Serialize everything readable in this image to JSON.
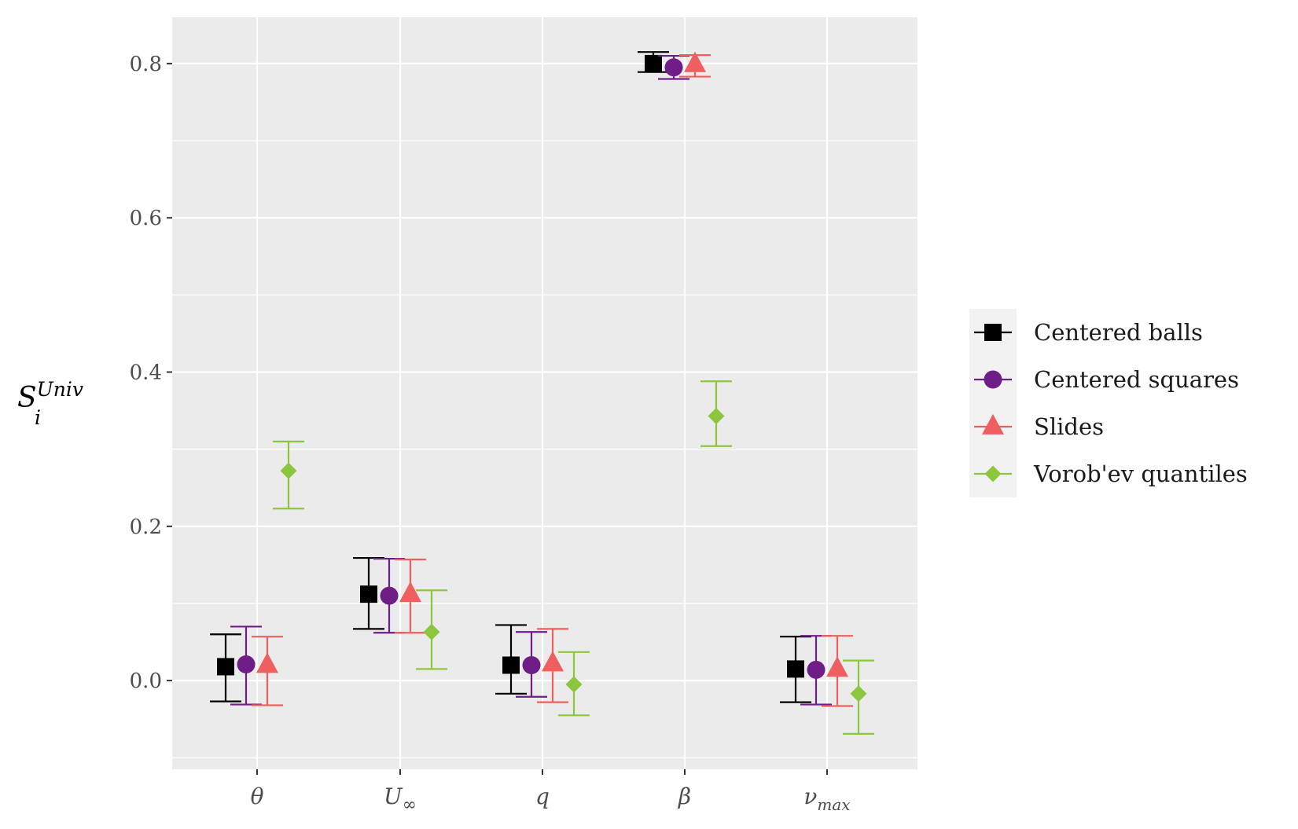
{
  "chart_data": {
    "type": "scatter",
    "title": "",
    "xlabel": "",
    "ylabel": {
      "base": "S",
      "sub": "i",
      "sup": "Univ"
    },
    "categories": [
      "θ",
      "U",
      "q",
      "β",
      "ν"
    ],
    "category_subscripts": [
      "",
      "∞",
      "",
      "",
      "max"
    ],
    "ylim": [
      -0.115,
      0.86
    ],
    "y_ticks": [
      0.0,
      0.2,
      0.4,
      0.6,
      0.8
    ],
    "y_tick_labels": [
      "0.0",
      "0.2",
      "0.4",
      "0.6",
      "0.8"
    ],
    "grid": true,
    "legend_position": "right",
    "series": [
      {
        "name": "Centered balls",
        "color": "#000000",
        "marker": "square",
        "values": [
          0.018,
          0.112,
          0.02,
          0.8,
          0.015
        ],
        "lower": [
          -0.027,
          0.067,
          -0.017,
          0.789,
          -0.028
        ],
        "upper": [
          0.06,
          0.159,
          0.072,
          0.815,
          0.057
        ]
      },
      {
        "name": "Centered squares",
        "color": "#6f1d87",
        "marker": "circle",
        "values": [
          0.021,
          0.11,
          0.02,
          0.795,
          0.014
        ],
        "lower": [
          -0.031,
          0.062,
          -0.021,
          0.78,
          -0.031
        ],
        "upper": [
          0.07,
          0.158,
          0.063,
          0.81,
          0.058
        ]
      },
      {
        "name": "Slides",
        "color": "#ef5f5f",
        "marker": "triangle",
        "values": [
          0.02,
          0.112,
          0.022,
          0.799,
          0.015
        ],
        "lower": [
          -0.032,
          0.062,
          -0.028,
          0.783,
          -0.033
        ],
        "upper": [
          0.057,
          0.157,
          0.067,
          0.811,
          0.058
        ]
      },
      {
        "name": "Vorob'ev quantiles",
        "color": "#8cc63e",
        "marker": "diamond",
        "values": [
          0.272,
          0.063,
          -0.005,
          0.343,
          -0.017
        ],
        "lower": [
          0.223,
          0.015,
          -0.045,
          0.304,
          -0.069
        ],
        "upper": [
          0.31,
          0.117,
          0.037,
          0.388,
          0.026
        ]
      }
    ]
  }
}
